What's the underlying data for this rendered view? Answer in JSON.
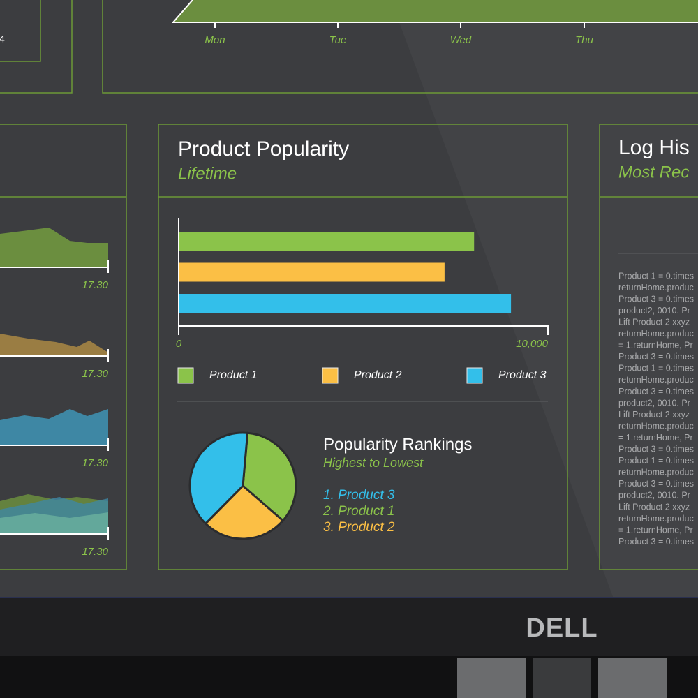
{
  "top_left_panel": {
    "value": "4"
  },
  "weekly_chart": {
    "days": [
      "Mon",
      "Tue",
      "Wed",
      "Thu"
    ]
  },
  "trend_panel": {
    "labels": [
      "17.30",
      "17.30",
      "17.30",
      "17.30"
    ]
  },
  "product_popularity": {
    "title": "Product Popularity",
    "subtitle": "Lifetime",
    "bar_chart": {
      "type": "bar",
      "categories": [
        "Product 1",
        "Product 2",
        "Product 3"
      ],
      "values": [
        8000,
        7200,
        9000
      ],
      "colors": [
        "#8bc34a",
        "#fbbf45",
        "#33bfea"
      ],
      "xlim": [
        0,
        10000
      ],
      "xticks": [
        0,
        {
          "value": 10000,
          "label": "10,000"
        }
      ]
    },
    "pie_chart": {
      "type": "pie",
      "categories": [
        "Product 1",
        "Product 2",
        "Product 3"
      ],
      "values": [
        35,
        26,
        39
      ],
      "colors": [
        "#8bc34a",
        "#fbbf45",
        "#33bfea"
      ]
    },
    "rankings": {
      "title": "Popularity Rankings",
      "subtitle": "Highest to Lowest",
      "items": [
        "1. Product 3",
        "2. Product 1",
        "3. Product 2"
      ]
    }
  },
  "log_history": {
    "title": "Log His",
    "subtitle": "Most Rec",
    "lines": [
      "Product 1 = 0.times",
      "returnHome.produc",
      "Product 3 = 0.times",
      "product2, 0010. Pr",
      "Lift Product 2 xxyz",
      "returnHome.produc",
      "= 1.returnHome, Pr",
      "Product 3 = 0.times",
      "Product 1 = 0.times",
      "returnHome.produc",
      "Product 3 = 0.times",
      "product2, 0010. Pr",
      "Lift Product 2 xxyz",
      "returnHome.produc",
      "= 1.returnHome, Pr",
      "Product 3 = 0.times",
      "Product 1 = 0.times",
      "returnHome.produc",
      "Product 3 = 0.times",
      "product2, 0010. Pr",
      "Lift Product 2 xxyz",
      "returnHome.produc",
      "= 1.returnHome, Pr",
      "Product 3 = 0.times"
    ]
  },
  "brand": "DELL"
}
